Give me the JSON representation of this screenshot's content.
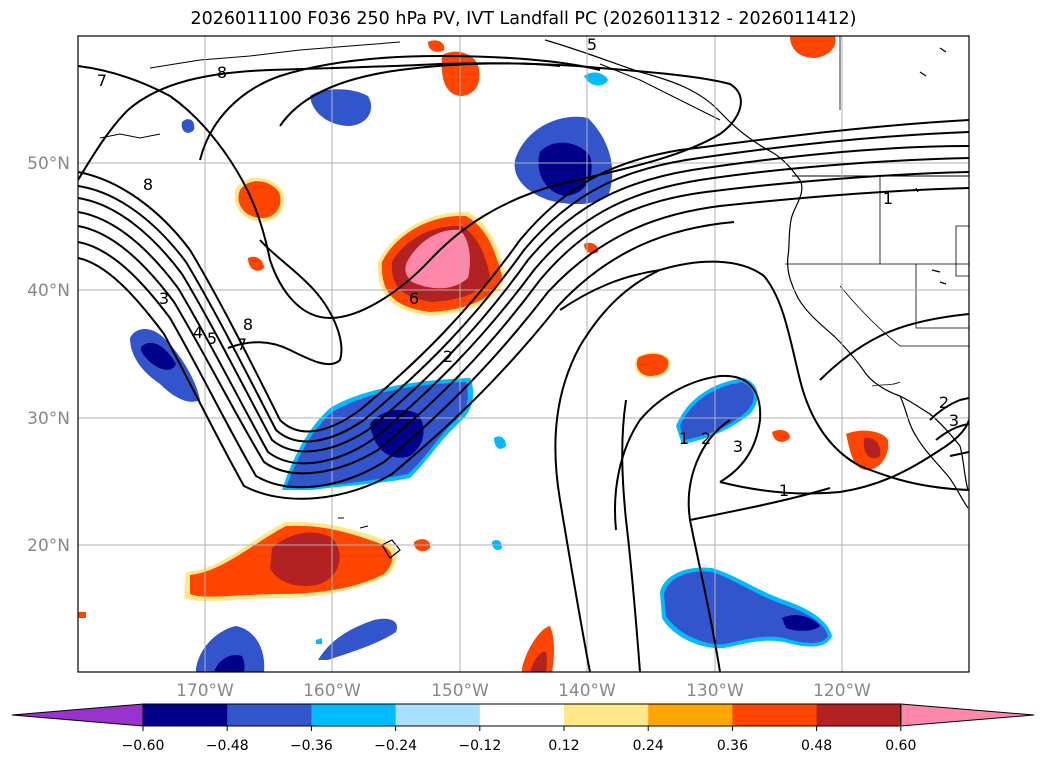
{
  "title": "2026011100 F036 250 hPa PV, IVT Landfall PC (2026011312 - 2026011412)",
  "lat_labels": [
    "50°N",
    "40°N",
    "30°N",
    "20°N"
  ],
  "lon_labels": [
    "170°W",
    "160°W",
    "150°W",
    "140°W",
    "130°W",
    "120°W"
  ],
  "colorbar": {
    "ticks": [
      "−0.60",
      "−0.48",
      "−0.36",
      "−0.24",
      "−0.12",
      "0.12",
      "0.24",
      "0.36",
      "0.48",
      "0.60"
    ],
    "colors": [
      "#9933cc",
      "#00008b",
      "#3355cc",
      "#00bbff",
      "#aadfff",
      "#ffffff",
      "#ffe88a",
      "#ffa500",
      "#ff4500",
      "#b22222",
      "#ff88aa"
    ]
  },
  "contour_labels": [
    "7",
    "8",
    "5",
    "8",
    "3",
    "4",
    "5",
    "8",
    "7",
    "6",
    "2",
    "1",
    "2",
    "3",
    "1",
    "1",
    "2",
    "3"
  ]
}
